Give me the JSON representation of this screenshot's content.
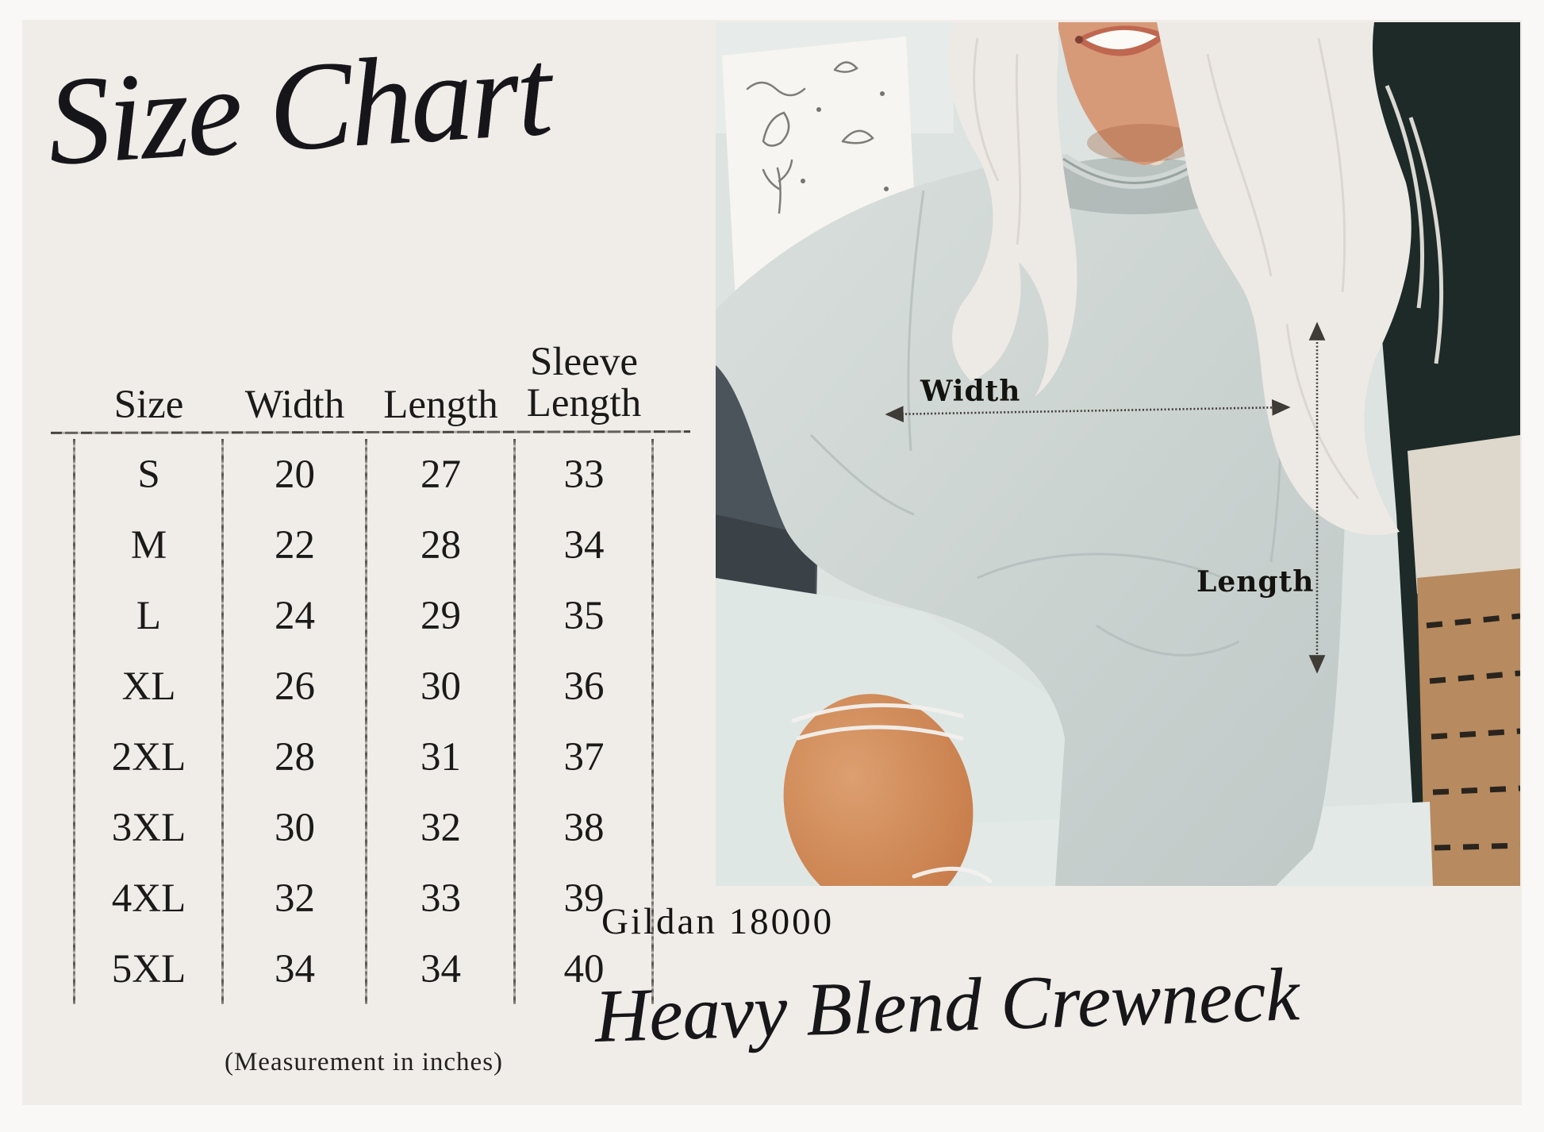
{
  "title": "Size Chart",
  "table": {
    "headers": {
      "size": "Size",
      "width": "Width",
      "length": "Length",
      "sleeve_top": "Sleeve",
      "sleeve_bottom": "Length"
    },
    "rows": [
      {
        "size": "S",
        "width": "20",
        "length": "27",
        "sleeve": "33"
      },
      {
        "size": "M",
        "width": "22",
        "length": "28",
        "sleeve": "34"
      },
      {
        "size": "L",
        "width": "24",
        "length": "29",
        "sleeve": "35"
      },
      {
        "size": "XL",
        "width": "26",
        "length": "30",
        "sleeve": "36"
      },
      {
        "size": "2XL",
        "width": "28",
        "length": "31",
        "sleeve": "37"
      },
      {
        "size": "3XL",
        "width": "30",
        "length": "32",
        "sleeve": "38"
      },
      {
        "size": "4XL",
        "width": "32",
        "length": "33",
        "sleeve": "39"
      },
      {
        "size": "5XL",
        "width": "34",
        "length": "34",
        "sleeve": "40"
      }
    ],
    "note": "(Measurement in inches)"
  },
  "photo": {
    "width_label": "Width",
    "length_label": "Length"
  },
  "product": {
    "model": "Gildan 18000",
    "name": "Heavy Blend Crewneck"
  },
  "chart_data": {
    "type": "table",
    "title": "Size Chart",
    "columns": [
      "Size",
      "Width",
      "Length",
      "Sleeve Length"
    ],
    "units": "inches",
    "rows": [
      [
        "S",
        20,
        27,
        33
      ],
      [
        "M",
        22,
        28,
        34
      ],
      [
        "L",
        24,
        29,
        35
      ],
      [
        "XL",
        26,
        30,
        36
      ],
      [
        "2XL",
        28,
        31,
        37
      ],
      [
        "3XL",
        30,
        32,
        38
      ],
      [
        "4XL",
        32,
        33,
        39
      ],
      [
        "5XL",
        34,
        34,
        40
      ]
    ],
    "notes": "Measurement in inches. Photo of gray crewneck sweatshirt annotated with Width (horizontal arrow across chest) and Length (vertical arrow)."
  },
  "colors": {
    "outer_bg": "#f9f8f6",
    "card_bg": "#f0ede9",
    "ink": "#1a1a19",
    "sweatshirt_gray": "#ccd3d1",
    "skin": "#d79a78",
    "knee_skin": "#cd8a5e",
    "photo_dark_background": "#1e2a28",
    "denim": "#dfe7e5",
    "chair_tan": "#b78a5f"
  }
}
